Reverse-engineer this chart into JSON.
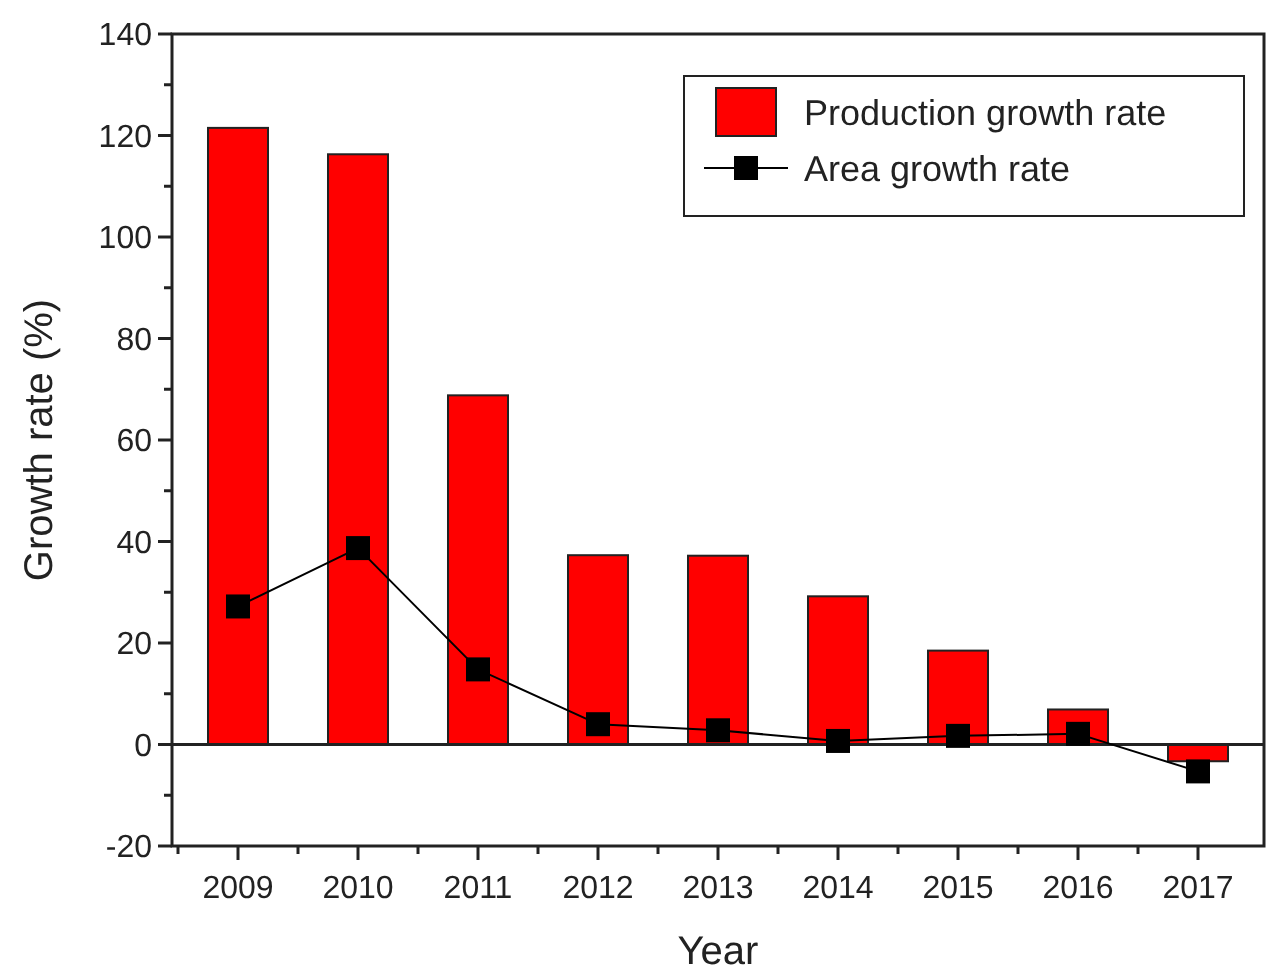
{
  "chart_data": {
    "type": "bar",
    "xlabel": "Year",
    "ylabel": "Growth rate (%)",
    "categories": [
      "2009",
      "2010",
      "2011",
      "2012",
      "2013",
      "2014",
      "2015",
      "2016",
      "2017"
    ],
    "series": [
      {
        "name": "Production growth rate",
        "color": "#ff0000",
        "values": [
          121.5,
          116.3,
          68.8,
          37.3,
          37.2,
          29.2,
          18.5,
          6.9,
          -3.3
        ]
      },
      {
        "name": "Area growth rate",
        "type": "line",
        "color": "#000000",
        "marker": "square",
        "values": [
          27.2,
          38.7,
          14.8,
          4.0,
          2.8,
          0.7,
          1.7,
          2.1,
          -5.3
        ]
      }
    ],
    "ylim": [
      -20,
      140
    ],
    "yticks": [
      -20,
      0,
      20,
      40,
      60,
      80,
      100,
      120,
      140
    ],
    "legend": "top right"
  }
}
